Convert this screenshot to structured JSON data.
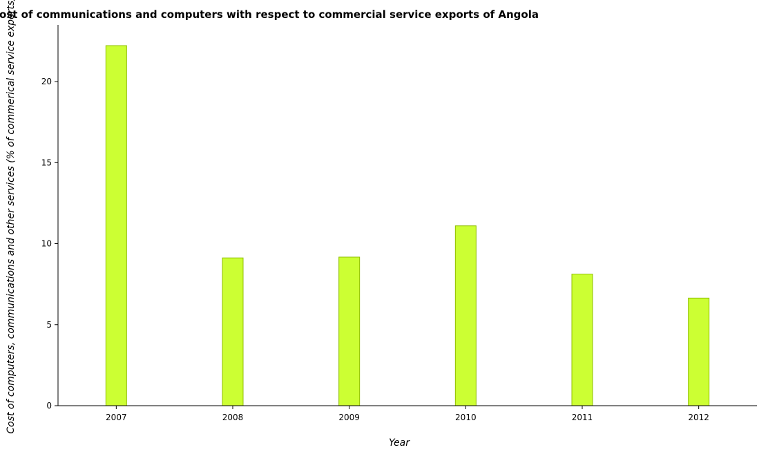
{
  "chart_data": {
    "type": "bar",
    "title": "Cost of communications and computers with respect to commercial service exports of Angola",
    "xlabel": "Year",
    "ylabel": "Cost of computers, communications and other services (% of commerical service exports)",
    "categories": [
      "2007",
      "2008",
      "2009",
      "2010",
      "2011",
      "2012"
    ],
    "values": [
      22.22,
      9.12,
      9.17,
      11.1,
      8.12,
      6.64
    ],
    "ylim": [
      0,
      23.5
    ],
    "yticks": [
      0,
      5,
      10,
      15,
      20
    ],
    "yticks_labels": [
      "0",
      "5",
      "10",
      "15",
      "20"
    ],
    "grid": false,
    "legend": "none",
    "colors": {
      "bar_fill": "#ccff33",
      "bar_stroke": "#8fbf00",
      "axis": "#000000",
      "text": "#000000"
    }
  }
}
